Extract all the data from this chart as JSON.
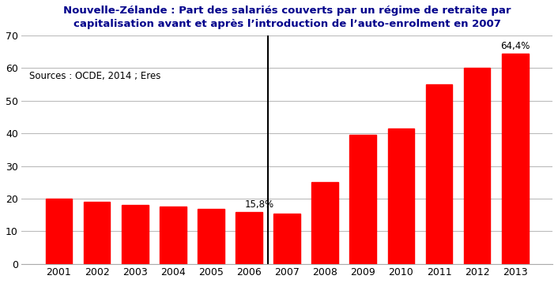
{
  "years": [
    "2001",
    "2002",
    "2003",
    "2004",
    "2005",
    "2006",
    "2007",
    "2008",
    "2009",
    "2010",
    "2011",
    "2012",
    "2013"
  ],
  "values": [
    20.0,
    19.0,
    18.0,
    17.5,
    17.0,
    15.8,
    15.5,
    25.0,
    39.5,
    41.5,
    55.0,
    60.0,
    64.4
  ],
  "bar_color": "#ff0000",
  "title_line1": "Nouvelle-Zélande : Part des salariés couverts par un régime de retraite par",
  "title_line2": "capitalisation avant et après l’introduction de l’auto-enrolment en 2007",
  "source_text": "Sources : OCDE, 2014 ; Eres",
  "ylim": [
    0,
    70
  ],
  "yticks": [
    0,
    10,
    20,
    30,
    40,
    50,
    60,
    70
  ],
  "annotation_2006": "15,8%",
  "annotation_2013": "64,4%",
  "title_color": "#00008B",
  "title_fontsize": 9.5,
  "background_color": "#ffffff",
  "grid_color": "#bbbbbb",
  "source_fontsize": 8.5,
  "annotation_fontsize": 8.5,
  "tick_fontsize": 9
}
